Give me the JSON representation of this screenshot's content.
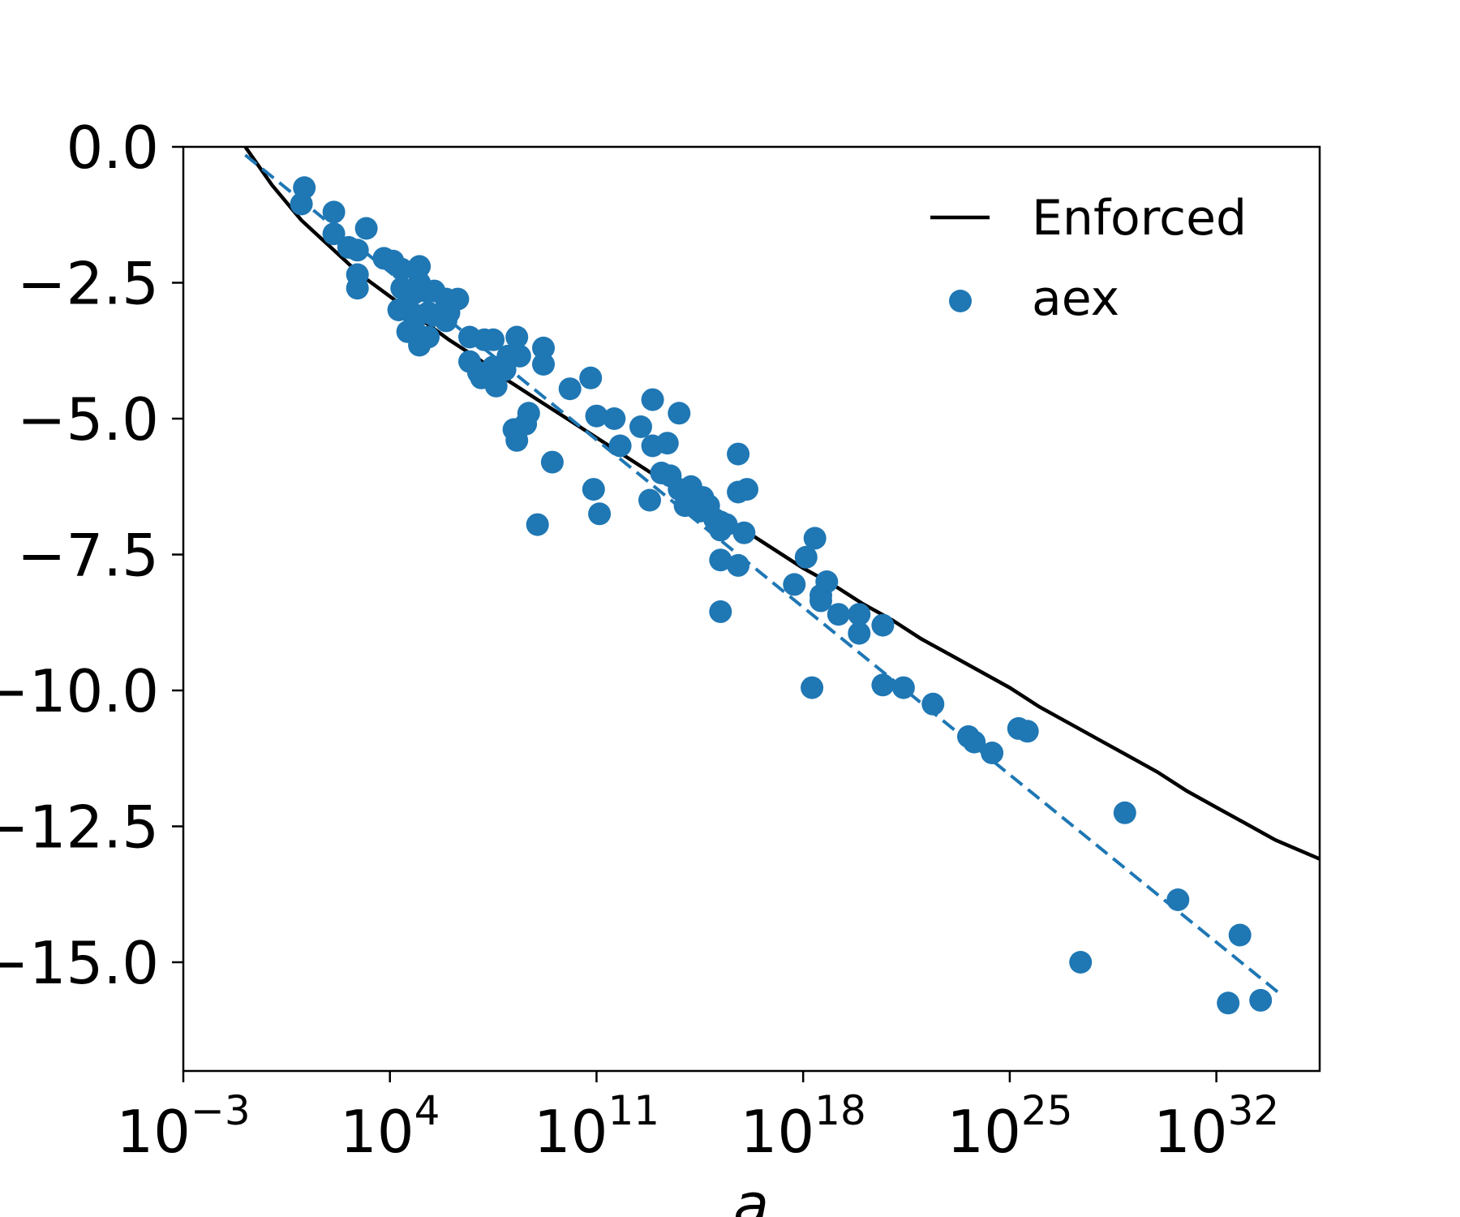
{
  "chart_data": {
    "type": "scatter",
    "xlabel": "a",
    "ylabel": "",
    "xscale": "log",
    "xlim_exponent": [
      -3,
      35.5
    ],
    "ylim": [
      -17,
      0
    ],
    "x_ticks": [
      {
        "base": "10",
        "exp": "−3"
      },
      {
        "base": "10",
        "exp": "4"
      },
      {
        "base": "10",
        "exp": "11"
      },
      {
        "base": "10",
        "exp": "18"
      },
      {
        "base": "10",
        "exp": "25"
      },
      {
        "base": "10",
        "exp": "32"
      }
    ],
    "x_tick_exponents": [
      -3,
      4,
      11,
      18,
      25,
      32
    ],
    "y_ticks": [
      "0.0",
      "−2.5",
      "−5.0",
      "−7.5",
      "−10.0",
      "−12.5",
      "−15.0"
    ],
    "y_tick_values": [
      0,
      -2.5,
      -5,
      -7.5,
      -10,
      -12.5,
      -15
    ],
    "legend_position": "top-right",
    "colors": {
      "enforced": "#000000",
      "aex": "#1f77b4"
    },
    "series": [
      {
        "name": "Enforced",
        "kind": "line",
        "color": "#000000",
        "x_exp": [
          -0.9,
          0,
          1,
          2,
          3,
          4,
          5,
          6,
          7,
          8,
          9,
          10,
          11,
          12,
          13,
          14,
          15,
          16,
          17,
          18,
          19,
          20,
          21,
          22,
          23,
          24,
          25,
          26,
          27,
          28,
          29,
          30,
          31,
          32,
          33,
          34,
          35.5
        ],
        "y": [
          0,
          -0.7,
          -1.35,
          -1.85,
          -2.35,
          -2.75,
          -3.15,
          -3.55,
          -3.9,
          -4.3,
          -4.65,
          -5.0,
          -5.35,
          -5.7,
          -6.05,
          -6.4,
          -6.75,
          -7.05,
          -7.4,
          -7.75,
          -8.05,
          -8.4,
          -8.7,
          -9.05,
          -9.35,
          -9.65,
          -9.95,
          -10.3,
          -10.6,
          -10.9,
          -11.2,
          -11.5,
          -11.85,
          -12.15,
          -12.45,
          -12.75,
          -13.1
        ]
      },
      {
        "name": "",
        "kind": "fit",
        "color": "#1f77b4",
        "x_exp": [
          -0.9,
          34.2
        ],
        "y": [
          -0.15,
          -15.6
        ]
      },
      {
        "name": "aex",
        "kind": "scatter",
        "color": "#1f77b4",
        "points": [
          [
            1.1,
            -0.75
          ],
          [
            1.0,
            -1.05
          ],
          [
            2.1,
            -1.2
          ],
          [
            2.1,
            -1.6
          ],
          [
            2.6,
            -1.85
          ],
          [
            2.9,
            -1.9
          ],
          [
            3.2,
            -1.5
          ],
          [
            3.8,
            -2.05
          ],
          [
            4.1,
            -2.1
          ],
          [
            2.9,
            -2.35
          ],
          [
            2.9,
            -2.6
          ],
          [
            4.4,
            -2.25
          ],
          [
            5.0,
            -2.2
          ],
          [
            5.0,
            -2.5
          ],
          [
            5.2,
            -2.65
          ],
          [
            4.4,
            -2.6
          ],
          [
            4.8,
            -2.7
          ],
          [
            5.5,
            -2.65
          ],
          [
            5.9,
            -2.8
          ],
          [
            6.3,
            -2.8
          ],
          [
            4.3,
            -3.0
          ],
          [
            4.6,
            -3.0
          ],
          [
            4.9,
            -3.1
          ],
          [
            4.8,
            -3.3
          ],
          [
            5.3,
            -3.05
          ],
          [
            5.5,
            -3.1
          ],
          [
            6.0,
            -3.05
          ],
          [
            5.9,
            -3.2
          ],
          [
            4.6,
            -3.4
          ],
          [
            5.0,
            -3.5
          ],
          [
            5.3,
            -3.5
          ],
          [
            5.0,
            -3.65
          ],
          [
            6.7,
            -3.5
          ],
          [
            7.2,
            -3.55
          ],
          [
            7.5,
            -3.55
          ],
          [
            8.0,
            -3.85
          ],
          [
            8.4,
            -3.85
          ],
          [
            8.3,
            -3.5
          ],
          [
            9.2,
            -3.7
          ],
          [
            9.2,
            -4.0
          ],
          [
            6.7,
            -3.95
          ],
          [
            7.0,
            -4.15
          ],
          [
            7.4,
            -4.2
          ],
          [
            7.5,
            -4.05
          ],
          [
            7.9,
            -4.1
          ],
          [
            7.6,
            -4.4
          ],
          [
            7.1,
            -4.25
          ],
          [
            10.1,
            -4.45
          ],
          [
            10.8,
            -4.25
          ],
          [
            8.2,
            -5.2
          ],
          [
            8.6,
            -5.1
          ],
          [
            8.7,
            -4.9
          ],
          [
            8.3,
            -5.4
          ],
          [
            9.5,
            -5.8
          ],
          [
            9.0,
            -6.95
          ],
          [
            10.9,
            -6.3
          ],
          [
            11.1,
            -6.75
          ],
          [
            11.0,
            -4.95
          ],
          [
            11.6,
            -5.0
          ],
          [
            11.8,
            -5.5
          ],
          [
            12.5,
            -5.15
          ],
          [
            12.9,
            -5.5
          ],
          [
            13.4,
            -5.45
          ],
          [
            12.9,
            -4.65
          ],
          [
            13.8,
            -4.9
          ],
          [
            12.8,
            -6.5
          ],
          [
            13.2,
            -6.0
          ],
          [
            13.5,
            -6.05
          ],
          [
            13.8,
            -6.3
          ],
          [
            14.0,
            -6.6
          ],
          [
            14.2,
            -6.25
          ],
          [
            14.6,
            -6.45
          ],
          [
            14.5,
            -6.7
          ],
          [
            15.0,
            -6.85
          ],
          [
            14.8,
            -6.6
          ],
          [
            15.2,
            -6.9
          ],
          [
            15.4,
            -6.95
          ],
          [
            15.2,
            -7.05
          ],
          [
            15.8,
            -6.35
          ],
          [
            16.1,
            -6.3
          ],
          [
            15.8,
            -5.65
          ],
          [
            16.0,
            -7.1
          ],
          [
            15.2,
            -7.6
          ],
          [
            15.8,
            -7.7
          ],
          [
            15.2,
            -8.55
          ],
          [
            17.7,
            -8.05
          ],
          [
            18.1,
            -7.55
          ],
          [
            18.4,
            -7.2
          ],
          [
            18.3,
            -9.95
          ],
          [
            18.6,
            -8.35
          ],
          [
            18.6,
            -8.25
          ],
          [
            18.8,
            -8.0
          ],
          [
            19.2,
            -8.6
          ],
          [
            19.9,
            -8.6
          ],
          [
            19.9,
            -8.95
          ],
          [
            20.7,
            -8.8
          ],
          [
            20.7,
            -9.9
          ],
          [
            21.4,
            -9.95
          ],
          [
            22.4,
            -10.25
          ],
          [
            23.6,
            -10.85
          ],
          [
            23.8,
            -10.95
          ],
          [
            24.4,
            -11.15
          ],
          [
            25.3,
            -10.7
          ],
          [
            25.6,
            -10.75
          ],
          [
            27.4,
            -15.0
          ],
          [
            28.9,
            -12.25
          ],
          [
            30.7,
            -13.85
          ],
          [
            32.4,
            -15.75
          ],
          [
            32.8,
            -14.5
          ],
          [
            33.5,
            -15.7
          ]
        ]
      }
    ]
  }
}
